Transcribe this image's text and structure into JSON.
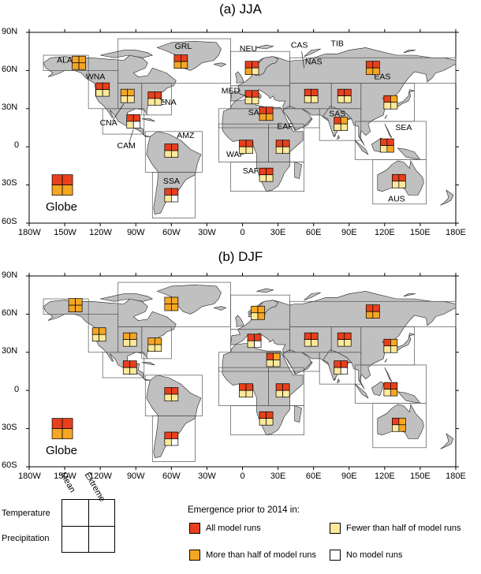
{
  "panels": [
    {
      "title": "(a) JJA",
      "globe_label": "Globe",
      "region_labels": [
        "ALA",
        "WNA",
        "CNA",
        "CAM",
        "ENA",
        "GRL",
        "AMZ",
        "SSA",
        "NEU",
        "MED",
        "SAH",
        "WAF",
        "EAF",
        "SAF",
        "CAS",
        "TIB",
        "NAS",
        "EAS",
        "SAS",
        "SEA",
        "AUS"
      ],
      "glyphs": {
        "Globe": [
          "all",
          "all",
          "more",
          "more"
        ],
        "ALA": [
          "more",
          "more",
          "more",
          "more"
        ],
        "WNA": [
          "all",
          "all",
          "fewer",
          "fewer"
        ],
        "CNA": [
          "more",
          "more",
          "fewer",
          "fewer"
        ],
        "ENA": [
          "all",
          "all",
          "fewer",
          "fewer"
        ],
        "GRL": [
          "all",
          "all",
          "more",
          "more"
        ],
        "CAM": [
          "all",
          "all",
          "fewer",
          "none"
        ],
        "AMZ": [
          "all",
          "all",
          "fewer",
          "fewer"
        ],
        "SSA": [
          "all",
          "all",
          "fewer",
          "none"
        ],
        "NEU": [
          "all",
          "all",
          "more",
          "fewer"
        ],
        "MED": [
          "all",
          "all",
          "fewer",
          "fewer"
        ],
        "SAH": [
          "all",
          "all",
          "more",
          "more"
        ],
        "WAF": [
          "all",
          "all",
          "fewer",
          "fewer"
        ],
        "EAF": [
          "all",
          "all",
          "fewer",
          "fewer"
        ],
        "SAF": [
          "all",
          "all",
          "fewer",
          "fewer"
        ],
        "CAS": [
          "all",
          "all",
          "fewer",
          "fewer"
        ],
        "TIB": [
          "all",
          "all",
          "fewer",
          "fewer"
        ],
        "NAS": [
          "all",
          "all",
          "more",
          "more"
        ],
        "EAS": [
          "all",
          "more",
          "fewer",
          "fewer"
        ],
        "SAS": [
          "all",
          "more",
          "fewer",
          "fewer"
        ],
        "SEA": [
          "all",
          "all",
          "fewer",
          "more"
        ],
        "AUS": [
          "all",
          "all",
          "fewer",
          "fewer"
        ]
      }
    },
    {
      "title": "(b) DJF",
      "globe_label": "Globe",
      "region_labels": [],
      "glyphs": {
        "Globe": [
          "all",
          "all",
          "more",
          "more"
        ],
        "ALA": [
          "more",
          "more",
          "more",
          "more"
        ],
        "WNA": [
          "more",
          "more",
          "fewer",
          "fewer"
        ],
        "CNA": [
          "more",
          "more",
          "fewer",
          "fewer"
        ],
        "ENA": [
          "more",
          "more",
          "fewer",
          "fewer"
        ],
        "GRL": [
          "more",
          "more",
          "more",
          "more"
        ],
        "CAM": [
          "all",
          "all",
          "fewer",
          "fewer"
        ],
        "AMZ": [
          "all",
          "all",
          "fewer",
          "fewer"
        ],
        "SSA": [
          "all",
          "all",
          "fewer",
          "none"
        ],
        "NEU": [
          "more",
          "more",
          "fewer",
          "more"
        ],
        "MED": [
          "all",
          "all",
          "fewer",
          "none"
        ],
        "SAH": [
          "all",
          "more",
          "fewer",
          "fewer"
        ],
        "WAF": [
          "all",
          "all",
          "fewer",
          "fewer"
        ],
        "EAF": [
          "all",
          "all",
          "fewer",
          "fewer"
        ],
        "SAF": [
          "all",
          "all",
          "fewer",
          "fewer"
        ],
        "CAS": [
          "all",
          "all",
          "fewer",
          "fewer"
        ],
        "TIB": [
          "all",
          "all",
          "fewer",
          "fewer"
        ],
        "NAS": [
          "all",
          "all",
          "more",
          "more"
        ],
        "EAS": [
          "all",
          "more",
          "fewer",
          "fewer"
        ],
        "SAS": [
          "all",
          "all",
          "fewer",
          "none"
        ],
        "SEA": [
          "all",
          "all",
          "fewer",
          "more"
        ],
        "AUS": [
          "all",
          "more",
          "fewer",
          "more"
        ]
      }
    }
  ],
  "axes": {
    "lat_labels": [
      "90N",
      "60N",
      "30N",
      "0",
      "30S",
      "60S"
    ],
    "lon_labels": [
      "180W",
      "150W",
      "120W",
      "90W",
      "60W",
      "30W",
      "0",
      "30E",
      "60E",
      "90E",
      "120E",
      "150E",
      "180E"
    ]
  },
  "legend": {
    "title": "Emergence prior to 2014 in:",
    "col_labels": [
      "Mean",
      "Extreme"
    ],
    "row_labels": [
      "Temperature",
      "Precipitation"
    ],
    "items": [
      {
        "key": "all",
        "label": "All model runs",
        "color": "#e8401c"
      },
      {
        "key": "fewer",
        "label": "Fewer than half of model runs",
        "color": "#fde99a"
      },
      {
        "key": "more",
        "label": "More than half of model runs",
        "color": "#f5a623"
      },
      {
        "key": "none",
        "label": "No model runs",
        "color": "#ffffff"
      }
    ]
  },
  "colors": {
    "land": "#c0c0c0",
    "all": "#e8401c",
    "more": "#f5a623",
    "fewer": "#fde99a",
    "none": "#ffffff"
  }
}
